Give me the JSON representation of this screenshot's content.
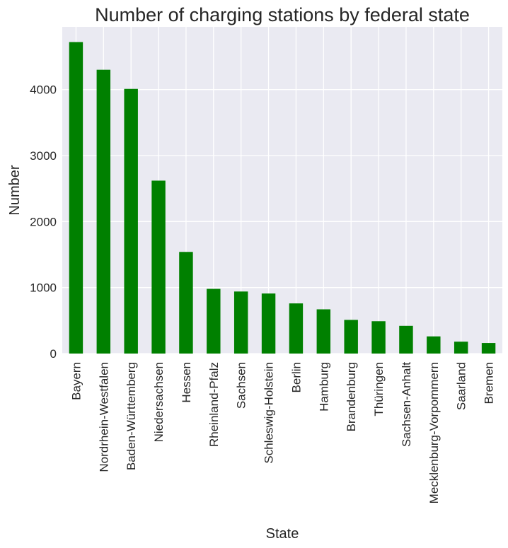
{
  "chart_data": {
    "type": "bar",
    "title": "Number of charging stations by federal state",
    "xlabel": "State",
    "ylabel": "Number",
    "categories": [
      "Bayern",
      "Nordrhein-Westfalen",
      "Baden-Württemberg",
      "Niedersachsen",
      "Hessen",
      "Rheinland-Pfalz",
      "Sachsen",
      "Schleswig-Holstein",
      "Berlin",
      "Hamburg",
      "Brandenburg",
      "Thüringen",
      "Sachsen-Anhalt",
      "Mecklenburg-Vorpommern",
      "Saarland",
      "Bremen"
    ],
    "values": [
      4720,
      4300,
      4010,
      2620,
      1540,
      980,
      940,
      910,
      760,
      670,
      510,
      490,
      420,
      260,
      180,
      160
    ],
    "yticks": [
      0,
      1000,
      2000,
      3000,
      4000
    ],
    "ylim": [
      0,
      4950
    ],
    "grid": true,
    "colors": {
      "bar": "#008000",
      "background": "#eaeaf2",
      "grid": "#ffffff"
    }
  }
}
